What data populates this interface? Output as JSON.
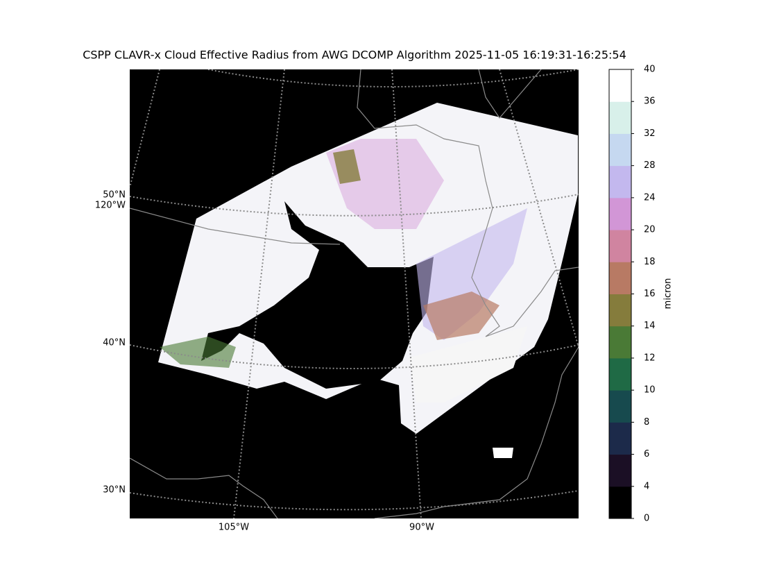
{
  "title": "CSPP CLAVR-x Cloud Effective Radius from AWG DCOMP Algorithm 2025-11-05 16:19:31-16:25:54",
  "map": {
    "lat_labels": [
      "50°N",
      "40°N",
      "30°N"
    ],
    "lon_labels": [
      "120°W",
      "105°W",
      "90°W"
    ]
  },
  "colorbar": {
    "label": "micron",
    "ticks": [
      0,
      4,
      6,
      8,
      10,
      12,
      14,
      16,
      18,
      20,
      24,
      28,
      32,
      36,
      40
    ],
    "colors": [
      "#000000",
      "#1b0f25",
      "#1c2a4a",
      "#174a4e",
      "#1f6a45",
      "#4a7a36",
      "#857c3c",
      "#b87a64",
      "#d084a0",
      "#d296d6",
      "#c3b8ee",
      "#c5d8f0",
      "#d8f0ea",
      "#ffffff"
    ]
  }
}
